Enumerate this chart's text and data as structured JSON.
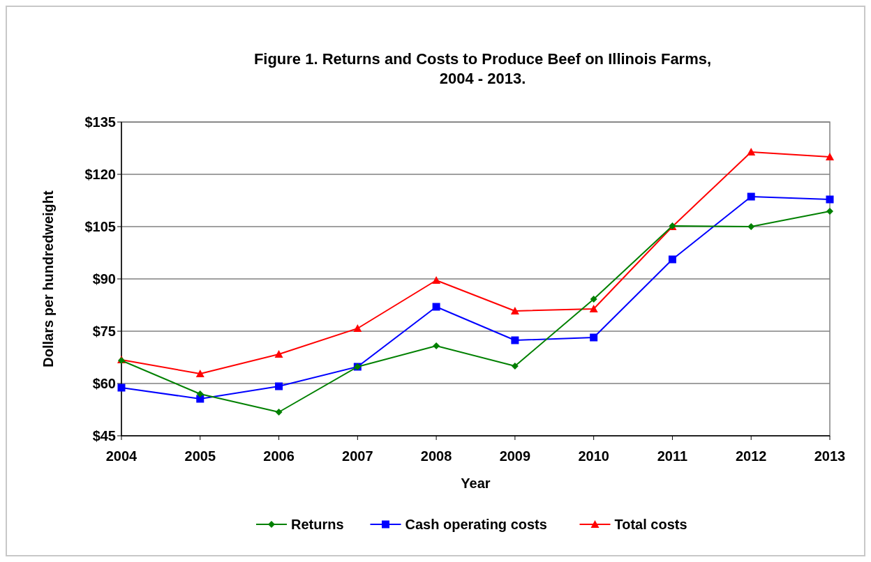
{
  "chart_data": {
    "type": "line",
    "title": "Figure 1.  Returns and Costs to Produce Beef on Illinois Farms,\n2004 - 2013.",
    "xlabel": "Year",
    "ylabel": "Dollars per hundredweight",
    "categories": [
      "2004",
      "2005",
      "2006",
      "2007",
      "2008",
      "2009",
      "2010",
      "2011",
      "2012",
      "2013"
    ],
    "series": [
      {
        "name": "Returns",
        "color": "#008000",
        "marker": "diamond",
        "values": [
          66.6,
          57,
          51.8,
          64.8,
          70.8,
          65,
          84.2,
          105.2,
          105,
          109.4
        ]
      },
      {
        "name": "Cash operating costs",
        "color": "#0000ff",
        "marker": "square",
        "values": [
          58.8,
          55.6,
          59.2,
          64.8,
          82,
          72.4,
          73.2,
          95.6,
          113.6,
          112.8
        ]
      },
      {
        "name": "Total costs",
        "color": "#ff0000",
        "marker": "triangle",
        "values": [
          66.8,
          62.8,
          68.4,
          75.8,
          89.6,
          80.8,
          81.4,
          105,
          126.4,
          125
        ]
      }
    ],
    "ylim": [
      45,
      135
    ],
    "yticks": [
      {
        "value": 45,
        "label": "$45"
      },
      {
        "value": 60,
        "label": "$60"
      },
      {
        "value": 75,
        "label": "$75"
      },
      {
        "value": 90,
        "label": "$90"
      },
      {
        "value": 105,
        "label": "$105"
      },
      {
        "value": 120,
        "label": "$120"
      },
      {
        "value": 135,
        "label": "$135"
      }
    ],
    "grid": "y",
    "legend": "bottom"
  }
}
